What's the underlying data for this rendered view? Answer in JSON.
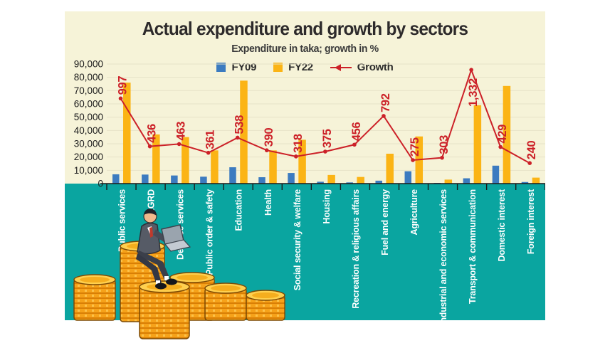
{
  "header": {
    "title": "Actual expenditure and growth by sectors",
    "subtitle": "Expenditure in taka; growth in %"
  },
  "legend": {
    "fy09_label": "FY09",
    "fy22_label": "FY22",
    "growth_label": "Growth"
  },
  "colors": {
    "panel_top_bg": "#f6f3d8",
    "panel_bottom_bg": "#0aa5a0",
    "fy09_bar": "#3c7bc0",
    "fy22_bar": "#fbb415",
    "growth_line": "#cc2128",
    "axis": "#1a1a1a",
    "gridline": "#e7e3c9",
    "category_text": "#ffffff",
    "tick_text": "#1b1b1b"
  },
  "icons": {
    "coins": "coin-stacks-illustration",
    "person": "man-with-laptop-illustration"
  },
  "chart_data": {
    "type": "bar",
    "note": "grouped bars with overlaid line on secondary axis",
    "categories": [
      "Public services",
      "LGRD",
      "Defence services",
      "Public order & safety",
      "Education",
      "Health",
      "Social security & welfare",
      "Housing",
      "Recreation & religious affairs",
      "Fuel and energy",
      "Agriculture",
      "Industrial and economic services",
      "Transport & communication",
      "Domestic interest",
      "Foreign interest"
    ],
    "series": [
      {
        "name": "FY09",
        "type": "bar",
        "values": [
          7000,
          6800,
          6100,
          5200,
          12300,
          4800,
          8000,
          1400,
          900,
          2200,
          9300,
          500,
          4000,
          13500,
          1200
        ]
      },
      {
        "name": "FY22",
        "type": "bar",
        "values": [
          76000,
          37000,
          35000,
          25000,
          77500,
          25000,
          33000,
          6500,
          5000,
          22500,
          35500,
          3000,
          59000,
          73500,
          4500
        ]
      },
      {
        "name": "Growth",
        "type": "line",
        "axis": "secondary",
        "values": [
          997,
          436,
          463,
          361,
          538,
          390,
          318,
          375,
          456,
          792,
          275,
          303,
          1332,
          429,
          240
        ]
      }
    ],
    "growth_labels": [
      "997",
      "436",
      "463",
      "361",
      "538",
      "390",
      "318",
      "375",
      "456",
      "792",
      "275",
      "303",
      "1,332",
      "429",
      "240"
    ],
    "y_axis": {
      "min": 0,
      "max": 90000,
      "step": 10000,
      "tick_labels": [
        "0",
        "10,000",
        "20,000",
        "30,000",
        "40,000",
        "50,000",
        "60,000",
        "70,000",
        "80,000",
        "90,000"
      ]
    },
    "secondary_axis": {
      "min": 0,
      "max": 1400,
      "visible": false
    },
    "grid": true,
    "legend_position": "top-center"
  }
}
